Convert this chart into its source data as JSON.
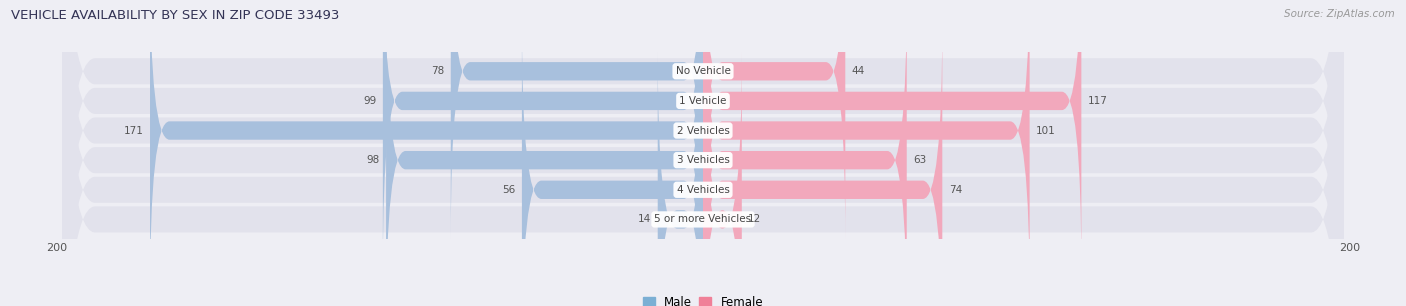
{
  "title": "VEHICLE AVAILABILITY BY SEX IN ZIP CODE 33493",
  "source": "Source: ZipAtlas.com",
  "categories": [
    "No Vehicle",
    "1 Vehicle",
    "2 Vehicles",
    "3 Vehicles",
    "4 Vehicles",
    "5 or more Vehicles"
  ],
  "male_values": [
    78,
    99,
    171,
    98,
    56,
    14
  ],
  "female_values": [
    44,
    117,
    101,
    63,
    74,
    12
  ],
  "male_color": "#a8c0dd",
  "female_color": "#f2a8bc",
  "male_color_legend": "#7bafd4",
  "female_color_legend": "#f08098",
  "axis_max": 200,
  "bg_color": "#eeeef4",
  "row_bg_color": "#e2e2ec",
  "title_color": "#333355",
  "source_color": "#999999",
  "label_color": "#444444",
  "value_color": "#555555",
  "figsize": [
    14.06,
    3.06
  ],
  "dpi": 100
}
